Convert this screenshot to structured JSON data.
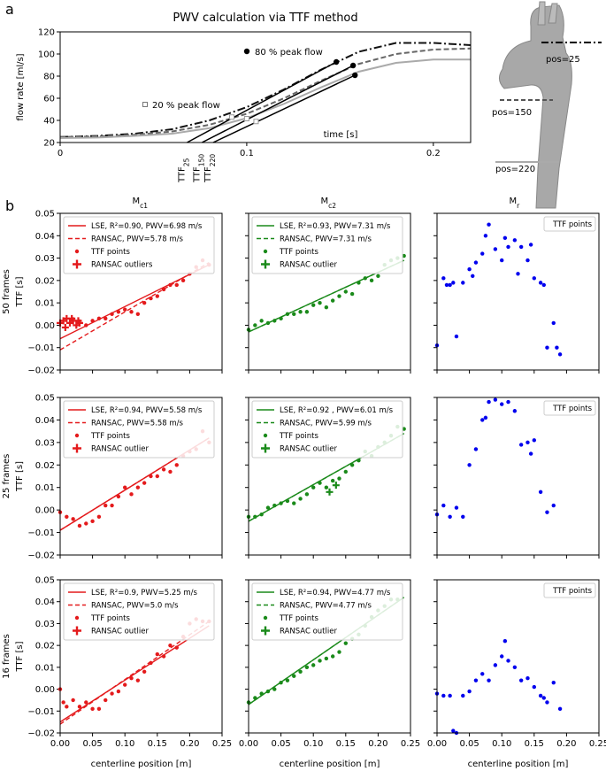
{
  "chart_data": [
    {
      "type": "line",
      "panel_label": "a",
      "title": "PWV calculation via TTF method",
      "ylabel": "flow rate [ml/s]",
      "xlabel": "time [s]",
      "xlim": [
        0,
        0.22
      ],
      "ylim": [
        20,
        120
      ],
      "xticks": [
        0,
        0.1,
        0.2
      ],
      "yticks": [
        20,
        40,
        60,
        80,
        100,
        120
      ],
      "x": [
        0,
        0.02,
        0.04,
        0.06,
        0.08,
        0.1,
        0.12,
        0.14,
        0.16,
        0.18,
        0.2,
        0.22
      ],
      "series": [
        {
          "color": "#111111",
          "dash": "dashdot",
          "values": [
            25,
            26,
            28,
            32,
            40,
            52,
            68,
            86,
            102,
            110,
            110,
            108
          ]
        },
        {
          "color": "#666666",
          "dash": "dashed",
          "values": [
            25,
            25.5,
            27,
            30,
            36,
            46,
            60,
            76,
            91,
            100,
            104,
            105
          ]
        },
        {
          "color": "#aaaaaa",
          "dash": "solid",
          "values": [
            24,
            24.5,
            26,
            28,
            33,
            42,
            55,
            70,
            84,
            92,
            95,
            95
          ]
        }
      ],
      "tangent_color": "#000000",
      "ttf": [
        {
          "base": "TTF",
          "sub": "25",
          "x": 0.068
        },
        {
          "base": "TTF",
          "sub": "150",
          "x": 0.076
        },
        {
          "base": "TTF",
          "sub": "220",
          "x": 0.082
        }
      ],
      "peak80": {
        "label": "80 % peak flow",
        "x": [
          0.148,
          0.157,
          0.158
        ],
        "y": [
          92.8,
          89.6,
          80.8
        ]
      },
      "peak20": {
        "label": "20 % peak flow",
        "x": [
          0.092,
          0.1,
          0.105
        ],
        "y": [
          43,
          41.6,
          39
        ]
      },
      "positions": [
        "pos=25",
        "pos=150",
        "pos=220"
      ]
    },
    {
      "type": "scatter",
      "panel_label": "b",
      "xlim": [
        0,
        0.25
      ],
      "ylim": [
        -0.02,
        0.05
      ],
      "xticks": [
        {
          "value": 0,
          "label": "0.00"
        },
        {
          "value": 0.05,
          "label": "0.05"
        },
        {
          "value": 0.1,
          "label": "0.10"
        },
        {
          "value": 0.15,
          "label": "0.15"
        },
        {
          "value": 0.2,
          "label": "0.20"
        },
        {
          "value": 0.25,
          "label": "0.25"
        }
      ],
      "yticks": [
        {
          "value": -0.02,
          "label": "−0.02"
        },
        {
          "value": -0.01,
          "label": "−0.01"
        },
        {
          "value": 0,
          "label": "0.00"
        },
        {
          "value": 0.01,
          "label": "0.01"
        },
        {
          "value": 0.02,
          "label": "0.02"
        },
        {
          "value": 0.03,
          "label": "0.03"
        },
        {
          "value": 0.04,
          "label": "0.04"
        },
        {
          "value": 0.05,
          "label": "0.05"
        }
      ],
      "xlabel": "centerline position [m]",
      "ylabel": "TTF [s]",
      "column_titles": [
        {
          "base": "M",
          "sub": "c1"
        },
        {
          "base": "M",
          "sub": "c2"
        },
        {
          "base": "M",
          "sub": "r"
        }
      ],
      "row_labels": [
        "50 frames",
        "25 frames",
        "16 frames"
      ],
      "panels": [
        {
          "color": "#e41a1c",
          "lse": {
            "label": "LSE, R²=0.90, PWV=6.98 m/s",
            "x": [
              0,
              0.23
            ],
            "y": [
              -0.006,
              0.027
            ]
          },
          "ransac": {
            "label": "RANSAC, PWV=5.78 m/s",
            "x": [
              0,
              0.23
            ],
            "y": [
              -0.011,
              0.028
            ]
          },
          "points": {
            "label": "TTF points",
            "x": [
              0.04,
              0.05,
              0.06,
              0.07,
              0.08,
              0.09,
              0.1,
              0.11,
              0.12,
              0.13,
              0.14,
              0.15,
              0.16,
              0.17,
              0.18,
              0.19,
              0.2,
              0.21,
              0.22,
              0.23
            ],
            "y": [
              0.0,
              0.002,
              0.003,
              0.003,
              0.005,
              0.006,
              0.007,
              0.006,
              0.005,
              0.01,
              0.012,
              0.013,
              0.016,
              0.018,
              0.018,
              0.02,
              0.023,
              0.026,
              0.029,
              0.027
            ]
          },
          "outliers": {
            "label": "RANSAC outliers",
            "x": [
              0.0,
              0.005,
              0.01,
              0.015,
              0.02,
              0.025,
              0.03,
              0.008,
              0.018,
              0.028
            ],
            "y": [
              0.001,
              0.002,
              0.003,
              0.001,
              0.002,
              0.0,
              0.001,
              -0.001,
              0.003,
              0.002
            ]
          }
        },
        {
          "color": "#1a8a1a",
          "lse": {
            "label": "LSE, R²=0.93, PWV=7.31 m/s",
            "x": [
              0,
              0.24
            ],
            "y": [
              -0.003,
              0.029
            ]
          },
          "ransac": {
            "label": "RANSAC, PWV=7.31 m/s",
            "x": [
              0,
              0.24
            ],
            "y": [
              -0.003,
              0.029
            ]
          },
          "points": {
            "label": "TTF points",
            "x": [
              0.0,
              0.01,
              0.02,
              0.03,
              0.04,
              0.05,
              0.06,
              0.07,
              0.08,
              0.09,
              0.1,
              0.11,
              0.12,
              0.13,
              0.14,
              0.15,
              0.16,
              0.17,
              0.18,
              0.19,
              0.2,
              0.21,
              0.22,
              0.23,
              0.24
            ],
            "y": [
              -0.002,
              0.0,
              0.002,
              0.001,
              0.002,
              0.003,
              0.005,
              0.005,
              0.006,
              0.006,
              0.009,
              0.01,
              0.008,
              0.011,
              0.013,
              0.015,
              0.014,
              0.019,
              0.021,
              0.02,
              0.022,
              0.027,
              0.029,
              0.03,
              0.031
            ]
          },
          "outliers": {
            "label": "RANSAC outlier"
          }
        },
        {
          "color": "#0000ee",
          "points": {
            "label": "TTF points",
            "x": [
              0.0,
              0.01,
              0.015,
              0.02,
              0.025,
              0.03,
              0.04,
              0.05,
              0.055,
              0.06,
              0.07,
              0.075,
              0.08,
              0.09,
              0.1,
              0.105,
              0.11,
              0.12,
              0.125,
              0.13,
              0.14,
              0.145,
              0.15,
              0.16,
              0.165,
              0.17,
              0.18,
              0.185,
              0.19
            ],
            "y": [
              -0.009,
              0.021,
              0.018,
              0.018,
              0.019,
              -0.005,
              0.019,
              0.025,
              0.022,
              0.028,
              0.032,
              0.04,
              0.045,
              0.034,
              0.029,
              0.039,
              0.035,
              0.038,
              0.023,
              0.035,
              0.029,
              0.036,
              0.021,
              0.019,
              0.018,
              -0.01,
              0.001,
              -0.01,
              -0.013
            ]
          }
        },
        {
          "color": "#e41a1c",
          "lse": {
            "label": "LSE, R²=0.94, PWV=5.58 m/s",
            "x": [
              0,
              0.23
            ],
            "y": [
              -0.009,
              0.032
            ]
          },
          "ransac": {
            "label": "RANSAC, PWV=5.58 m/s",
            "x": [
              0,
              0.23
            ],
            "y": [
              -0.009,
              0.032
            ]
          },
          "points": {
            "label": "TTF points",
            "x": [
              0.0,
              0.01,
              0.02,
              0.03,
              0.04,
              0.05,
              0.06,
              0.07,
              0.08,
              0.09,
              0.1,
              0.11,
              0.12,
              0.13,
              0.14,
              0.15,
              0.16,
              0.17,
              0.18,
              0.19,
              0.2,
              0.21,
              0.22,
              0.23
            ],
            "y": [
              -0.001,
              -0.003,
              -0.004,
              -0.007,
              -0.006,
              -0.005,
              -0.003,
              0.002,
              0.002,
              0.006,
              0.01,
              0.007,
              0.01,
              0.012,
              0.015,
              0.015,
              0.018,
              0.017,
              0.02,
              0.024,
              0.026,
              0.027,
              0.035,
              0.03
            ]
          },
          "outliers": {
            "label": "RANSAC outlier"
          }
        },
        {
          "color": "#1a8a1a",
          "lse": {
            "label": "LSE, R²=0.92 , PWV=6.01 m/s",
            "x": [
              0,
              0.24
            ],
            "y": [
              -0.005,
              0.034
            ]
          },
          "ransac": {
            "label": "RANSAC, PWV=5.99 m/s",
            "x": [
              0,
              0.24
            ],
            "y": [
              -0.005,
              0.034
            ]
          },
          "points": {
            "label": "TTF points",
            "x": [
              0.0,
              0.01,
              0.02,
              0.03,
              0.04,
              0.05,
              0.06,
              0.07,
              0.08,
              0.09,
              0.1,
              0.11,
              0.12,
              0.13,
              0.14,
              0.15,
              0.16,
              0.17,
              0.18,
              0.19,
              0.2,
              0.21,
              0.22,
              0.23,
              0.24
            ],
            "y": [
              -0.003,
              -0.003,
              -0.002,
              0.001,
              0.002,
              0.003,
              0.004,
              0.003,
              0.005,
              0.007,
              0.01,
              0.012,
              0.01,
              0.013,
              0.014,
              0.017,
              0.02,
              0.022,
              0.026,
              0.024,
              0.028,
              0.03,
              0.033,
              0.037,
              0.036
            ]
          },
          "outliers": {
            "label": "RANSAC outlier",
            "x": [
              0.125,
              0.135
            ],
            "y": [
              0.008,
              0.011
            ]
          }
        },
        {
          "color": "#0000ee",
          "points": {
            "label": "TTF points",
            "x": [
              0.0,
              0.01,
              0.02,
              0.03,
              0.04,
              0.05,
              0.06,
              0.07,
              0.075,
              0.08,
              0.09,
              0.1,
              0.11,
              0.12,
              0.13,
              0.14,
              0.145,
              0.15,
              0.16,
              0.17,
              0.18
            ],
            "y": [
              -0.002,
              0.002,
              -0.003,
              0.001,
              -0.003,
              0.02,
              0.027,
              0.04,
              0.041,
              0.048,
              0.049,
              0.047,
              0.048,
              0.044,
              0.029,
              0.03,
              0.025,
              0.031,
              0.008,
              -0.001,
              0.002
            ]
          }
        },
        {
          "color": "#e41a1c",
          "lse": {
            "label": "LSE, R²=0.9, PWV=5.25 m/s",
            "x": [
              0,
              0.23
            ],
            "y": [
              -0.015,
              0.029
            ]
          },
          "ransac": {
            "label": "RANSAC, PWV=5.0 m/s",
            "x": [
              0,
              0.23
            ],
            "y": [
              -0.016,
              0.031
            ]
          },
          "points": {
            "label": "TTF points",
            "x": [
              0.0,
              0.005,
              0.01,
              0.02,
              0.03,
              0.04,
              0.05,
              0.06,
              0.07,
              0.08,
              0.09,
              0.1,
              0.11,
              0.12,
              0.13,
              0.14,
              0.15,
              0.16,
              0.17,
              0.18,
              0.19,
              0.2,
              0.21,
              0.22,
              0.23
            ],
            "y": [
              0.0,
              -0.006,
              -0.008,
              -0.005,
              -0.008,
              -0.006,
              -0.009,
              -0.009,
              -0.005,
              -0.002,
              -0.001,
              0.002,
              0.005,
              0.004,
              0.008,
              0.012,
              0.016,
              0.015,
              0.02,
              0.019,
              0.024,
              0.03,
              0.032,
              0.031,
              0.031
            ]
          },
          "outliers": {
            "label": "RANSAC outlier"
          }
        },
        {
          "color": "#1a8a1a",
          "lse": {
            "label": "LSE, R²=0.94, PWV=4.77 m/s",
            "x": [
              0,
              0.24
            ],
            "y": [
              -0.007,
              0.042
            ]
          },
          "ransac": {
            "label": "RANSAC, PWV=4.77 m/s",
            "x": [
              0,
              0.24
            ],
            "y": [
              -0.007,
              0.042
            ]
          },
          "points": {
            "label": "TTF points",
            "x": [
              0.0,
              0.01,
              0.02,
              0.03,
              0.04,
              0.05,
              0.06,
              0.07,
              0.08,
              0.09,
              0.1,
              0.11,
              0.12,
              0.13,
              0.14,
              0.15,
              0.16,
              0.17,
              0.18,
              0.19,
              0.2,
              0.21,
              0.22,
              0.23
            ],
            "y": [
              -0.006,
              -0.004,
              -0.002,
              -0.001,
              0.0,
              0.003,
              0.004,
              0.006,
              0.008,
              0.01,
              0.011,
              0.013,
              0.014,
              0.015,
              0.017,
              0.021,
              0.023,
              0.025,
              0.029,
              0.033,
              0.036,
              0.038,
              0.041,
              0.041
            ]
          },
          "outliers": {
            "label": "RANSAC outlier"
          }
        },
        {
          "color": "#0000ee",
          "points": {
            "label": "TTF points",
            "x": [
              0.0,
              0.01,
              0.02,
              0.025,
              0.03,
              0.04,
              0.05,
              0.06,
              0.07,
              0.08,
              0.09,
              0.1,
              0.105,
              0.11,
              0.12,
              0.13,
              0.14,
              0.15,
              0.16,
              0.165,
              0.17,
              0.18,
              0.19
            ],
            "y": [
              -0.002,
              -0.003,
              -0.003,
              -0.019,
              -0.02,
              -0.003,
              -0.001,
              0.004,
              0.007,
              0.004,
              0.011,
              0.015,
              0.022,
              0.013,
              0.01,
              0.004,
              0.005,
              0.001,
              -0.003,
              -0.004,
              -0.006,
              0.003,
              -0.009
            ]
          }
        }
      ]
    }
  ]
}
